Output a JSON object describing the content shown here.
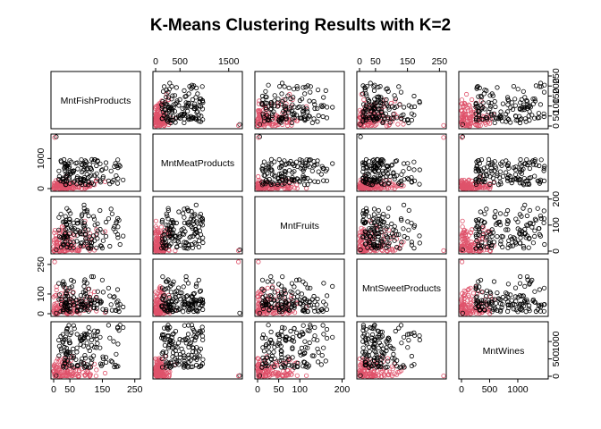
{
  "chart_data": {
    "type": "scatter",
    "title": "K-Means Clustering Results with K=2",
    "variables": [
      "MntFishProducts",
      "MntMeatProducts",
      "MntFruits",
      "MntSweetProducts",
      "MntWines"
    ],
    "ranges": {
      "MntFishProducts": [
        0,
        259
      ],
      "MntMeatProducts": [
        0,
        1725
      ],
      "MntFruits": [
        0,
        199
      ],
      "MntSweetProducts": [
        0,
        263
      ],
      "MntWines": [
        0,
        1493
      ]
    },
    "ticks": {
      "MntFishProducts": [
        0,
        50,
        150,
        250
      ],
      "MntMeatProducts": [
        0,
        500,
        1500
      ],
      "MntFruits": [
        0,
        50,
        100,
        200
      ],
      "MntSweetProducts": [
        0,
        50,
        150,
        250
      ],
      "MntWines": [
        0,
        500,
        1000
      ]
    },
    "right_axis_ticks": {
      "MntFishProducts": [
        0,
        50,
        100,
        150,
        200,
        250
      ],
      "MntFruits": [
        0,
        100,
        200
      ],
      "MntWines": [
        0,
        500,
        1000
      ]
    },
    "left_axis_ticks": {
      "MntMeatProducts": [
        0,
        1000
      ],
      "MntSweetProducts": [
        0,
        100,
        250
      ]
    },
    "series": [
      {
        "cluster": 1,
        "color": "#000000"
      },
      {
        "cluster": 2,
        "color": "#DF536B"
      }
    ],
    "point_style": "open-circle"
  }
}
